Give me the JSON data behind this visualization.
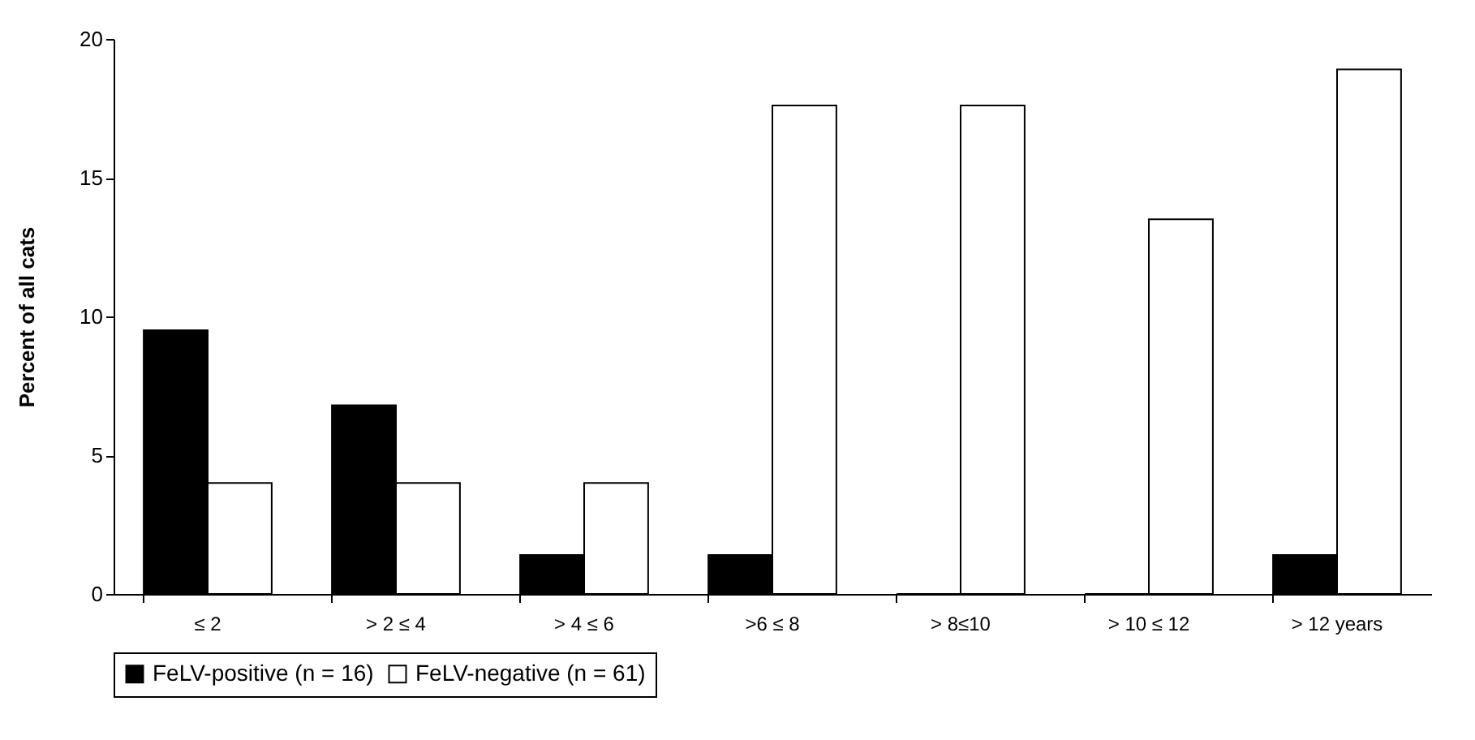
{
  "chart_data": {
    "type": "bar",
    "ylabel": "Percent of all cats",
    "categories": [
      "≤ 2",
      "> 2 ≤ 4",
      "> 4 ≤  6",
      ">6 ≤ 8",
      "> 8≤10",
      "> 10 ≤ 12",
      "> 12 years"
    ],
    "series": [
      {
        "name": "FeLV-positive (n = 16)",
        "color": "#000000",
        "values": [
          9.5,
          6.8,
          1.4,
          1.4,
          0,
          0,
          1.4
        ]
      },
      {
        "name": "FeLV-negative (n = 61)",
        "color": "#ffffff",
        "values": [
          4,
          4,
          4,
          17.6,
          17.6,
          13.5,
          18.9
        ]
      }
    ],
    "ylim": [
      0,
      20
    ],
    "yticks": [
      0,
      5,
      10,
      15,
      20
    ],
    "grid": false,
    "legend": "bottom"
  }
}
